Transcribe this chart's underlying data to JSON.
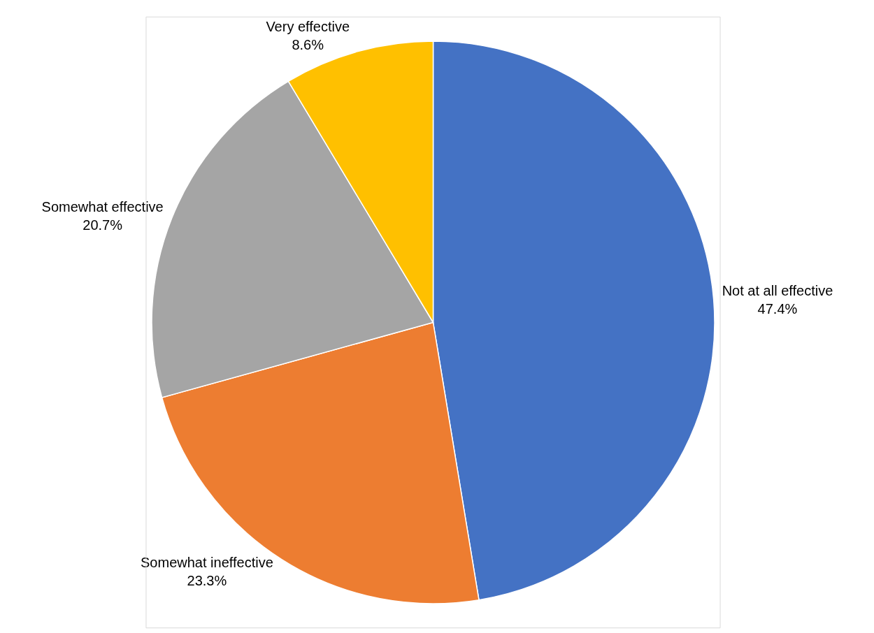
{
  "chart_data": {
    "type": "pie",
    "categories": [
      "Not at all effective",
      "Somewhat ineffective",
      "Somewhat effective",
      "Very effective"
    ],
    "values": [
      47.4,
      23.3,
      20.7,
      8.6
    ],
    "colors": [
      "#4472c4",
      "#ed7d31",
      "#a5a5a5",
      "#ffc000"
    ],
    "value_labels": [
      "47.4%",
      "23.3%",
      "20.7%",
      "8.6%"
    ],
    "legend": false
  }
}
